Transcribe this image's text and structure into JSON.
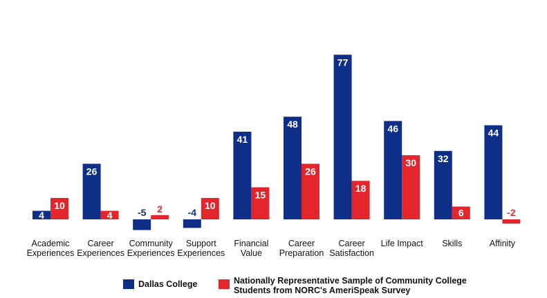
{
  "chart_data": {
    "type": "bar",
    "categories": [
      [
        "Academic",
        "Experiences"
      ],
      [
        "Career",
        "Experiences"
      ],
      [
        "Community",
        "Experiences"
      ],
      [
        "Support",
        "Experiences"
      ],
      [
        "Financial",
        "Value"
      ],
      [
        "Career",
        "Preparation"
      ],
      [
        "Career",
        "Satisfaction"
      ],
      [
        "Life Impact"
      ],
      [
        "Skills"
      ],
      [
        "Affinity"
      ]
    ],
    "series": [
      {
        "name": "Dallas College",
        "legend_lines": [
          "Dallas College"
        ],
        "color": "#0d2f87",
        "values": [
          4,
          26,
          -5,
          -4,
          41,
          48,
          77,
          46,
          32,
          44
        ]
      },
      {
        "name": "Nationally Representative Sample of Community College Students from NORC's AmeriSpeak Survey",
        "legend_lines": [
          "Nationally Representative Sample of Community College",
          "Students from NORC's AmeriSpeak Survey"
        ],
        "color": "#e3262b",
        "values": [
          10,
          4,
          2,
          10,
          15,
          26,
          18,
          30,
          6,
          -2
        ]
      }
    ],
    "title": "",
    "xlabel": "",
    "ylabel": "",
    "ylim": [
      -5,
      77
    ],
    "grid": false,
    "legend": "bottom"
  }
}
